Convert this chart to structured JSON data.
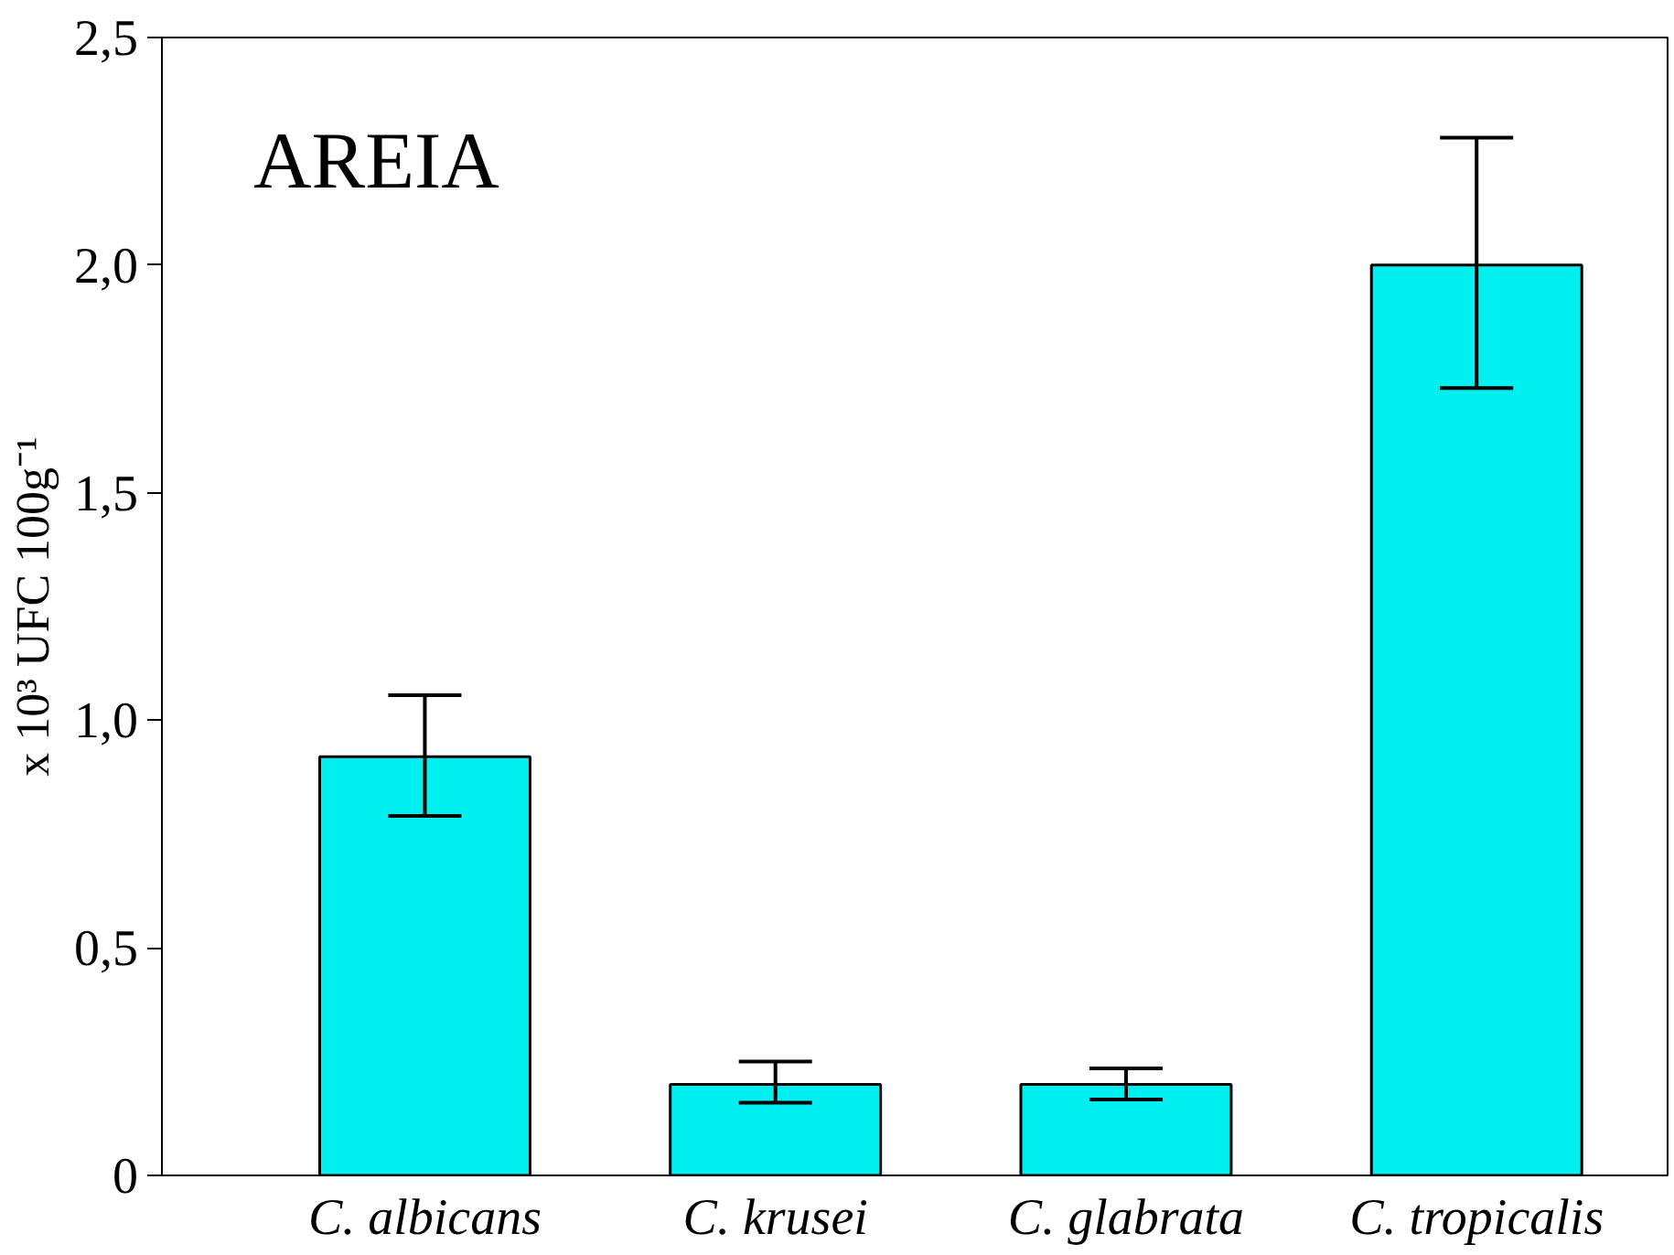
{
  "chart_data": {
    "type": "bar",
    "ylabel": "x 10³ UFC 100g⁻¹",
    "annotations": [
      "AREIA"
    ],
    "categories": [
      "C. albicans",
      "C. krusei",
      "C. glabrata",
      "C. tropicalis"
    ],
    "values": [
      0.92,
      0.2,
      0.2,
      2.0
    ],
    "color": "#00f0f0",
    "errors": [
      [
        0.79,
        1.055
      ],
      [
        0.16,
        0.25
      ],
      [
        0.167,
        0.235
      ],
      [
        1.73,
        2.28
      ]
    ],
    "ylim": [
      0,
      2.5
    ],
    "yticks": [
      0,
      {
        "value": 0.5,
        "label": "0,5"
      },
      {
        "value": 1.0,
        "label": "1,0"
      },
      {
        "value": 1.5,
        "label": "1,5"
      },
      {
        "value": 2.0,
        "label": "2,0"
      },
      {
        "value": 2.5,
        "label": "2,5"
      }
    ],
    "grid": false
  }
}
